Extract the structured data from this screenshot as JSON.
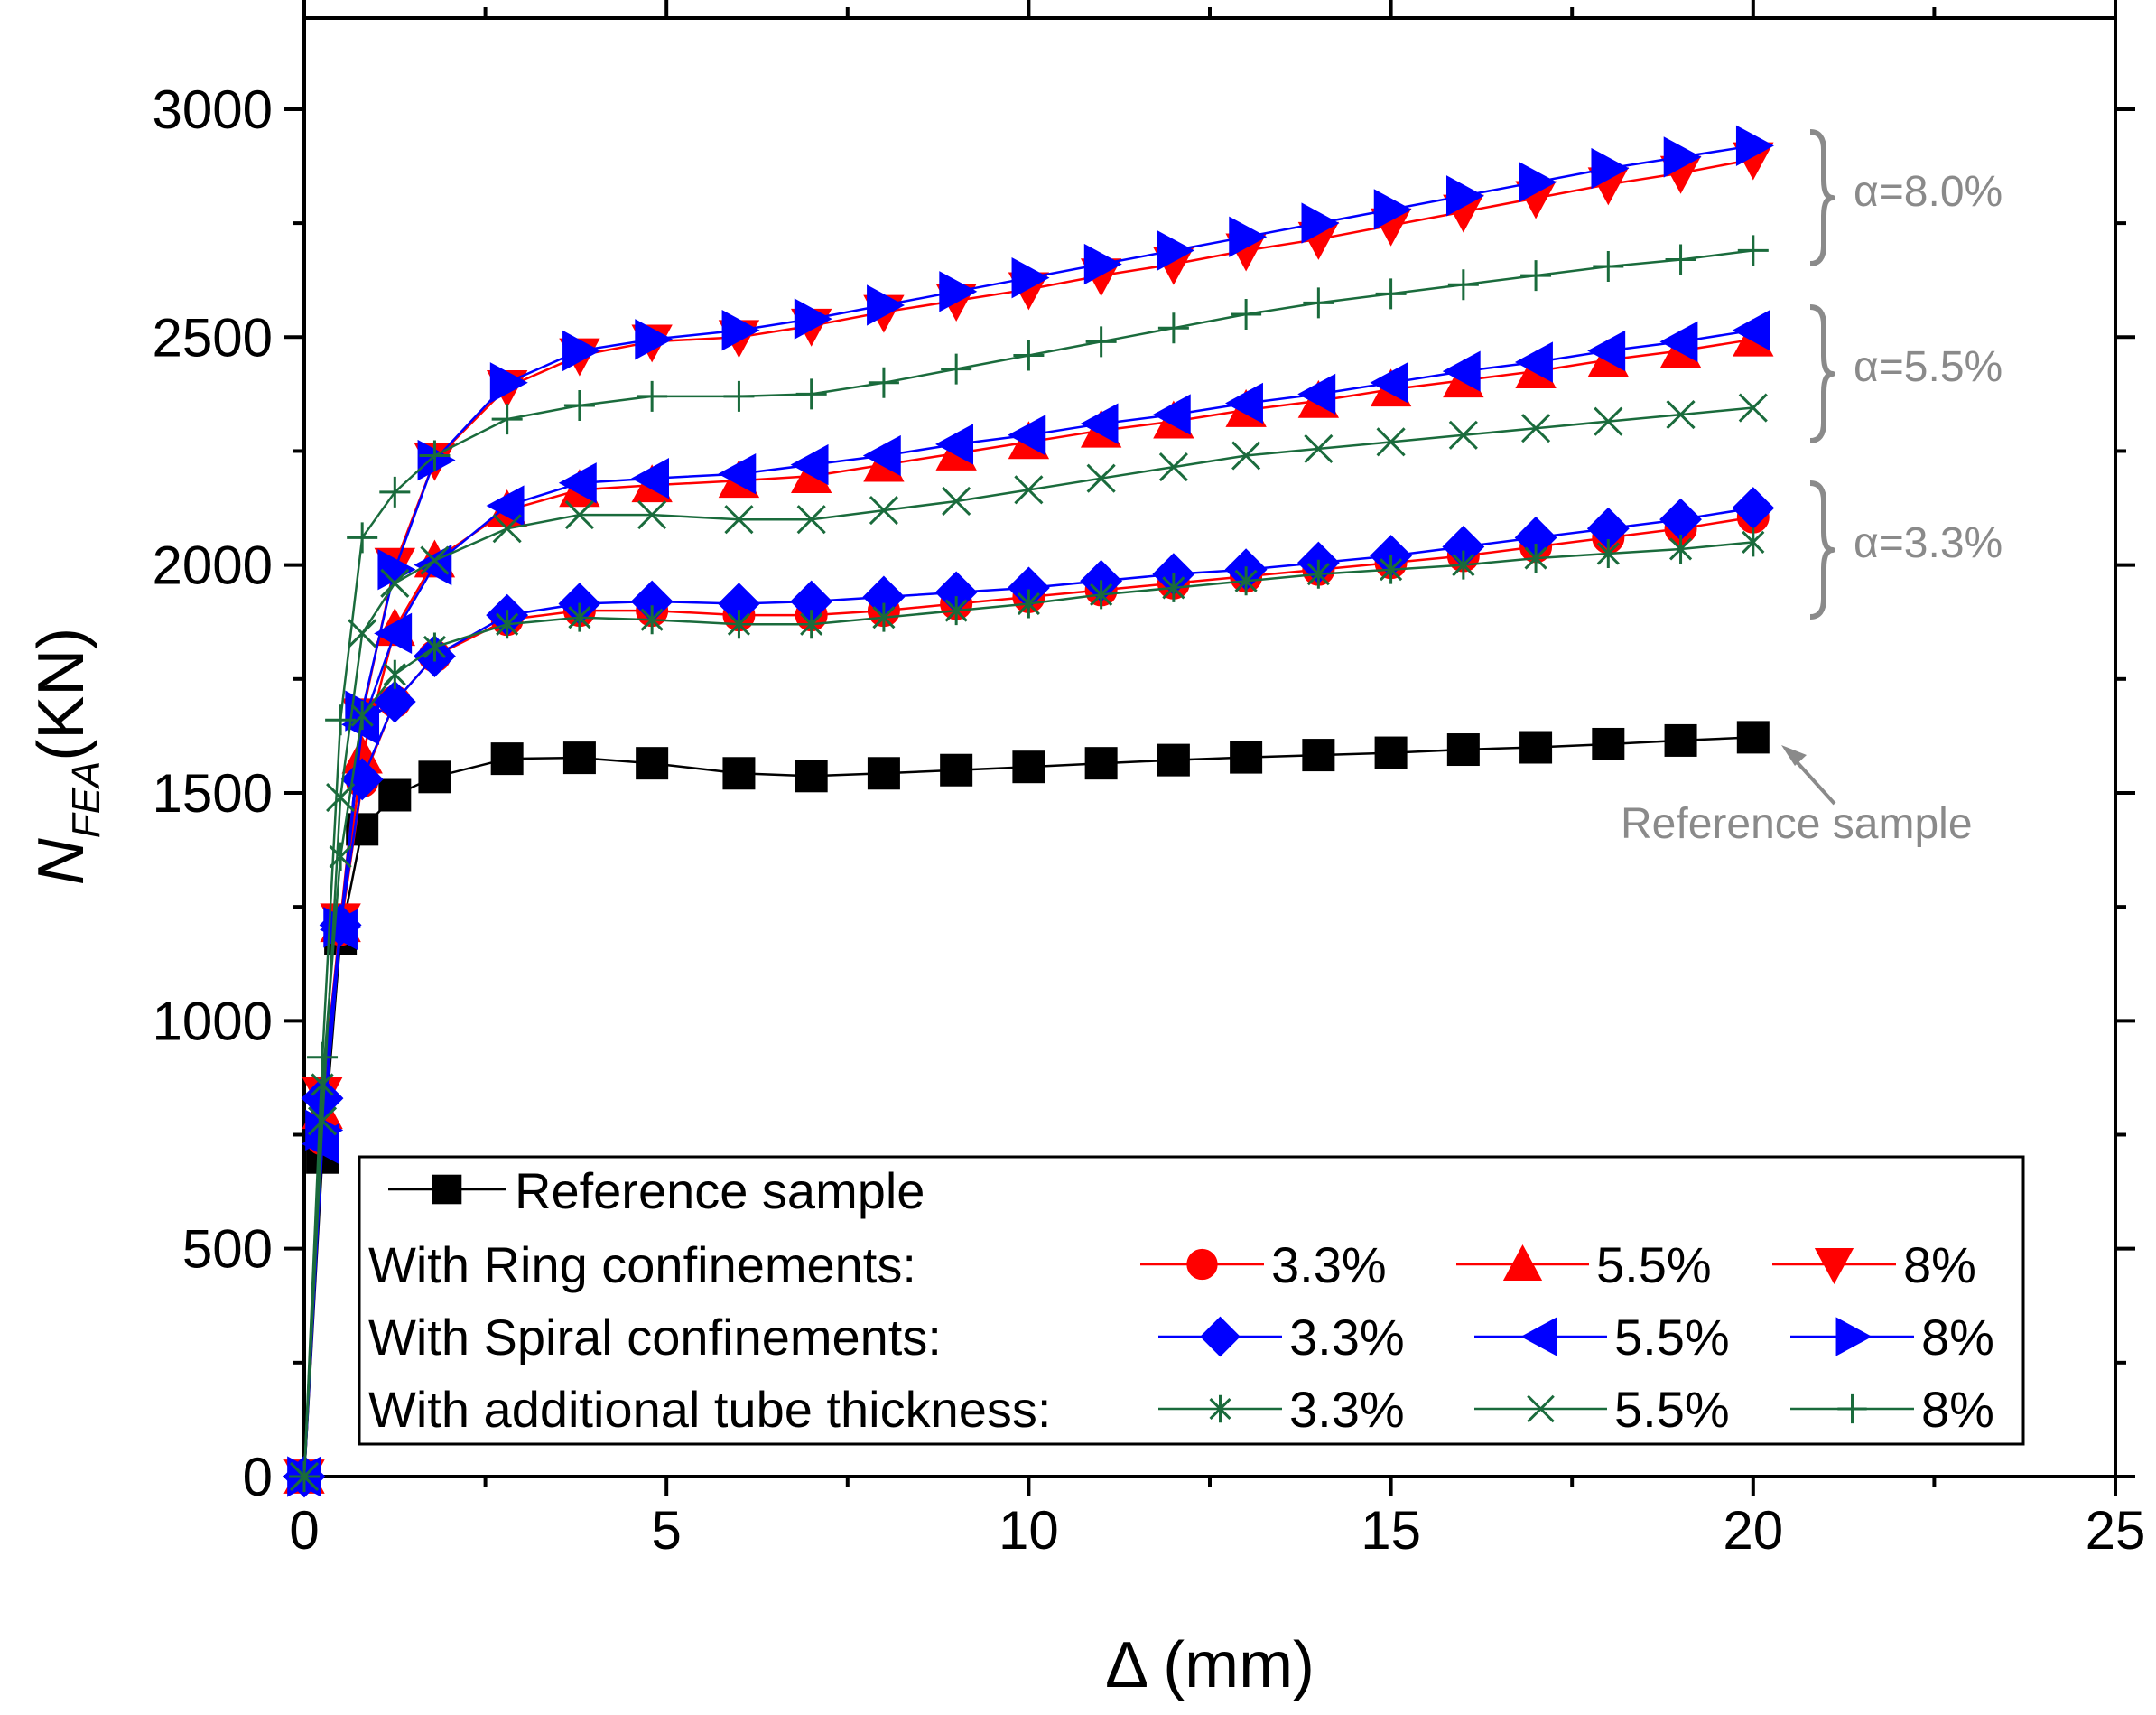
{
  "chart_data": {
    "type": "line",
    "xlabel": "Δ (mm)",
    "ylabel": {
      "main": "N",
      "sub": "FEA",
      "unit": "(KN)"
    },
    "xlim": [
      0,
      25
    ],
    "ylim": [
      0,
      3200
    ],
    "x_ticks": [
      0,
      5,
      10,
      15,
      20,
      25
    ],
    "y_ticks": [
      0,
      500,
      1000,
      1500,
      2000,
      2500,
      3000
    ],
    "grid": false,
    "legend_position": "bottom",
    "legend": {
      "reference_label": "Reference sample",
      "groups": [
        {
          "label": "With Ring confinements:",
          "entries": [
            "3.3%",
            "5.5%",
            "8%"
          ]
        },
        {
          "label": "With Spiral confinements:",
          "entries": [
            "3.3%",
            "5.5%",
            "8%"
          ]
        },
        {
          "label": "With additional tube thickness:",
          "entries": [
            "3.3%",
            "5.5%",
            "8%"
          ]
        }
      ]
    },
    "annotations": {
      "alpha_80": "α=8.0%",
      "alpha_55": "α=5.5%",
      "alpha_33": "α=3.3%",
      "reference": "Reference sample"
    },
    "colors": {
      "reference": "#000000",
      "ring": "#ff0000",
      "spiral": "#0000ff",
      "tube": "#1a6b3c",
      "annotation": "#8a8a8a"
    },
    "series": [
      {
        "id": "reference",
        "group": "reference",
        "marker": "square",
        "x": [
          0,
          0.25,
          0.5,
          0.8,
          1.25,
          1.8,
          2.8,
          3.8,
          4.8,
          6,
          7,
          8,
          9,
          10,
          11,
          12,
          13,
          14,
          15,
          16,
          17,
          18,
          19,
          20
        ],
        "y": [
          0,
          700,
          1180,
          1420,
          1495,
          1535,
          1575,
          1577,
          1565,
          1543,
          1537,
          1543,
          1550,
          1557,
          1565,
          1572,
          1578,
          1583,
          1588,
          1595,
          1600,
          1607,
          1615,
          1622
        ]
      },
      {
        "id": "ring-3.3",
        "group": "ring",
        "marker": "circle",
        "x": [
          0,
          0.25,
          0.5,
          0.8,
          1.25,
          1.8,
          2.8,
          3.8,
          4.8,
          6,
          7,
          8,
          9,
          10,
          11,
          12,
          13,
          14,
          15,
          16,
          17,
          18,
          19,
          20
        ],
        "y": [
          0,
          740,
          1200,
          1525,
          1700,
          1800,
          1880,
          1900,
          1900,
          1890,
          1890,
          1900,
          1915,
          1930,
          1945,
          1960,
          1975,
          1990,
          2005,
          2020,
          2040,
          2060,
          2080,
          2105
        ]
      },
      {
        "id": "ring-5.5",
        "group": "ring",
        "marker": "triangle-up",
        "x": [
          0,
          0.25,
          0.5,
          0.8,
          1.25,
          1.8,
          2.8,
          3.8,
          4.8,
          6,
          7,
          8,
          9,
          10,
          11,
          12,
          13,
          14,
          15,
          16,
          17,
          18,
          19,
          20
        ],
        "y": [
          0,
          800,
          1210,
          1580,
          1860,
          2010,
          2120,
          2165,
          2175,
          2185,
          2195,
          2220,
          2245,
          2270,
          2295,
          2315,
          2340,
          2360,
          2385,
          2405,
          2425,
          2450,
          2470,
          2495
        ]
      },
      {
        "id": "ring-8",
        "group": "ring",
        "marker": "triangle-down",
        "x": [
          0,
          0.25,
          0.5,
          0.8,
          1.25,
          1.8,
          2.8,
          3.8,
          4.8,
          6,
          7,
          8,
          9,
          10,
          11,
          12,
          13,
          14,
          15,
          16,
          17,
          18,
          19,
          20
        ],
        "y": [
          0,
          840,
          1220,
          1670,
          2000,
          2230,
          2390,
          2460,
          2490,
          2500,
          2525,
          2555,
          2580,
          2605,
          2635,
          2660,
          2690,
          2715,
          2745,
          2775,
          2805,
          2835,
          2860,
          2890
        ]
      },
      {
        "id": "spiral-3.3",
        "group": "spiral",
        "marker": "diamond",
        "x": [
          0,
          0.25,
          0.5,
          0.8,
          1.25,
          1.8,
          2.8,
          3.8,
          4.8,
          6,
          7,
          8,
          9,
          10,
          11,
          12,
          13,
          14,
          15,
          16,
          17,
          18,
          19,
          20
        ],
        "y": [
          0,
          830,
          1210,
          1530,
          1700,
          1800,
          1890,
          1915,
          1920,
          1915,
          1920,
          1930,
          1940,
          1950,
          1965,
          1980,
          1990,
          2005,
          2020,
          2040,
          2060,
          2080,
          2100,
          2125
        ]
      },
      {
        "id": "spiral-5.5",
        "group": "spiral",
        "marker": "triangle-left",
        "x": [
          0,
          0.25,
          0.5,
          0.8,
          1.25,
          1.8,
          2.8,
          3.8,
          4.8,
          6,
          7,
          8,
          9,
          10,
          11,
          12,
          13,
          14,
          15,
          16,
          17,
          18,
          19,
          20
        ],
        "y": [
          0,
          730,
          1200,
          1650,
          1850,
          2000,
          2130,
          2180,
          2190,
          2200,
          2220,
          2240,
          2265,
          2285,
          2310,
          2330,
          2355,
          2375,
          2400,
          2425,
          2445,
          2470,
          2490,
          2515
        ]
      },
      {
        "id": "spiral-8",
        "group": "spiral",
        "marker": "triangle-right",
        "x": [
          0,
          0.25,
          0.5,
          0.8,
          1.25,
          1.8,
          2.8,
          3.8,
          4.8,
          6,
          7,
          8,
          9,
          10,
          11,
          12,
          13,
          14,
          15,
          16,
          17,
          18,
          19,
          20
        ],
        "y": [
          0,
          760,
          1205,
          1680,
          1990,
          2230,
          2400,
          2470,
          2495,
          2515,
          2540,
          2570,
          2600,
          2630,
          2660,
          2690,
          2720,
          2750,
          2780,
          2810,
          2840,
          2870,
          2895,
          2920
        ]
      },
      {
        "id": "tube-3.3",
        "group": "tube",
        "marker": "asterisk",
        "x": [
          0,
          0.25,
          0.5,
          0.8,
          1.25,
          1.8,
          2.8,
          3.8,
          4.8,
          6,
          7,
          8,
          9,
          10,
          11,
          12,
          13,
          14,
          15,
          16,
          17,
          18,
          19,
          20
        ],
        "y": [
          0,
          860,
          1360,
          1670,
          1760,
          1820,
          1870,
          1885,
          1880,
          1870,
          1870,
          1885,
          1900,
          1915,
          1935,
          1950,
          1965,
          1980,
          1990,
          2000,
          2015,
          2025,
          2035,
          2050
        ]
      },
      {
        "id": "tube-5.5",
        "group": "tube",
        "marker": "cross",
        "x": [
          0,
          0.25,
          0.5,
          0.8,
          1.25,
          1.8,
          2.8,
          3.8,
          4.8,
          6,
          7,
          8,
          9,
          10,
          11,
          12,
          13,
          14,
          15,
          16,
          17,
          18,
          19,
          20
        ],
        "y": [
          0,
          780,
          1490,
          1850,
          1960,
          2010,
          2080,
          2110,
          2110,
          2100,
          2100,
          2120,
          2140,
          2165,
          2190,
          2215,
          2240,
          2255,
          2270,
          2285,
          2300,
          2315,
          2330,
          2345
        ]
      },
      {
        "id": "tube-8",
        "group": "tube",
        "marker": "plus",
        "x": [
          0,
          0.25,
          0.5,
          0.8,
          1.25,
          1.8,
          2.8,
          3.8,
          4.8,
          6,
          7,
          8,
          9,
          10,
          11,
          12,
          13,
          14,
          15,
          16,
          17,
          18,
          19,
          20
        ],
        "y": [
          0,
          920,
          1660,
          2060,
          2160,
          2240,
          2320,
          2350,
          2370,
          2370,
          2375,
          2400,
          2430,
          2460,
          2490,
          2520,
          2550,
          2575,
          2595,
          2615,
          2635,
          2655,
          2670,
          2690
        ]
      }
    ]
  }
}
